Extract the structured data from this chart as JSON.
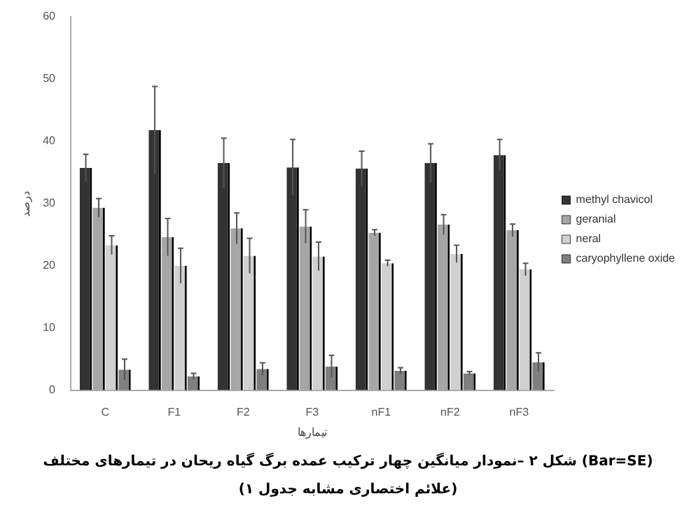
{
  "chart_data": {
    "type": "bar",
    "xlabel": "تیمارها",
    "ylabel": "درصد",
    "categories": [
      "C",
      "F1",
      "F2",
      "F3",
      "nF1",
      "nF2",
      "nF3"
    ],
    "series": [
      {
        "name": "methyl chavicol",
        "color": "#333333",
        "values": [
          35.7,
          41.8,
          36.5,
          35.8,
          35.6,
          36.5,
          37.8
        ],
        "errors": [
          2.2,
          7,
          4,
          4.5,
          2.8,
          3.1,
          2.5
        ]
      },
      {
        "name": "geranial",
        "color": "#a6a6a6",
        "values": [
          29.3,
          24.6,
          26,
          26.3,
          25.3,
          26.6,
          25.7
        ],
        "errors": [
          1.5,
          3,
          2.5,
          2.7,
          0.5,
          1.6,
          1
        ]
      },
      {
        "name": "neral",
        "color": "#d0d0d0",
        "values": [
          23.3,
          20,
          21.6,
          21.5,
          20.4,
          21.9,
          19.4
        ],
        "errors": [
          1.5,
          2.8,
          2.8,
          2.3,
          0.5,
          1.4,
          1
        ]
      },
      {
        "name": "caryophyllene oxide",
        "color": "#7f7f7f",
        "values": [
          3.3,
          2.2,
          3.4,
          3.8,
          3.1,
          2.7,
          4.5
        ],
        "errors": [
          1.7,
          0.5,
          1,
          1.8,
          0.5,
          0.3,
          1.5
        ]
      }
    ],
    "ylim": [
      0,
      60
    ],
    "yticks": [
      0,
      10,
      20,
      30,
      40,
      50,
      60
    ],
    "legend": "right",
    "annotations": [
      "شکل ۲ –نمودار میانگین چهار ترکیب عمده برگ گیاه ریحان در تیمارهای مختلف (Bar=SE)",
      "(علائم اختصاری مشابه جدول ۱)"
    ]
  }
}
